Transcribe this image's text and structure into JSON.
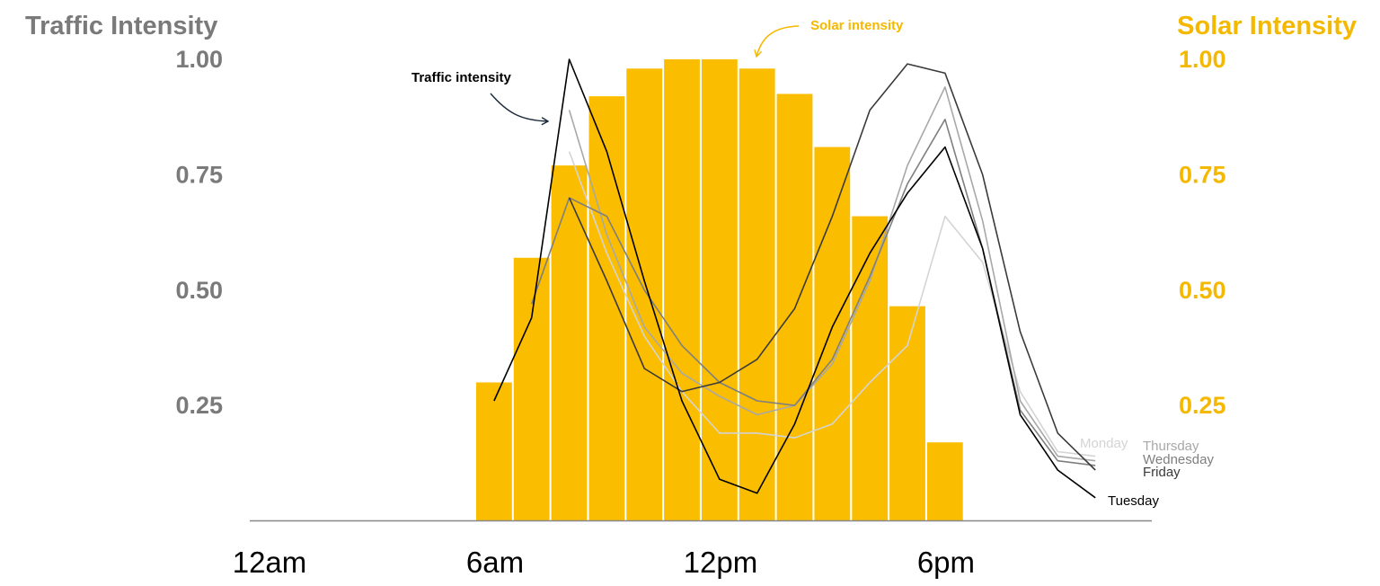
{
  "chart_data": {
    "type": "bar",
    "left_axis": {
      "title": "Traffic Intensity",
      "ticks": [
        "1.00",
        "0.75",
        "0.50",
        "0.25"
      ],
      "tick_values": [
        1.0,
        0.75,
        0.5,
        0.25
      ],
      "ylim": [
        0,
        1.0
      ],
      "color": "#7a7a7a"
    },
    "right_axis": {
      "title": "Solar Intensity",
      "ticks": [
        "1.00",
        "0.75",
        "0.50",
        "0.25"
      ],
      "tick_values": [
        1.0,
        0.75,
        0.5,
        0.25
      ],
      "ylim": [
        0,
        1.0
      ],
      "color": "#f5b800"
    },
    "x_axis": {
      "xlim": [
        0,
        24
      ],
      "ticks": [
        "12am",
        "6am",
        "12pm",
        "6pm"
      ],
      "tick_values": [
        0,
        6,
        12,
        18
      ]
    },
    "solar_bars": {
      "color": "#fbbd00",
      "hours": [
        6,
        7,
        8,
        9,
        10,
        11,
        12,
        13,
        14,
        15,
        16,
        17,
        18
      ],
      "values": [
        0.3,
        0.57,
        0.77,
        0.92,
        0.98,
        1.0,
        1.0,
        0.98,
        0.925,
        0.81,
        0.66,
        0.465,
        0.17
      ]
    },
    "series": [
      {
        "name": "Monday",
        "color": "#d4d4d4",
        "x": [
          8.5,
          9.5,
          10.5,
          11.5,
          12.5,
          13.5,
          14.5,
          15.5,
          16.5,
          17.5,
          18.5,
          19.5,
          20.5,
          21.5,
          22.5
        ],
        "values": [
          0.8,
          0.58,
          0.4,
          0.28,
          0.19,
          0.19,
          0.18,
          0.21,
          0.3,
          0.38,
          0.66,
          0.56,
          0.28,
          0.15,
          0.14
        ]
      },
      {
        "name": "Thursday",
        "color": "#a8a8a8",
        "x": [
          8.5,
          9.5,
          10.5,
          11.5,
          12.5,
          13.5,
          14.5,
          15.5,
          16.5,
          17.5,
          18.5,
          19.5,
          20.5,
          21.5,
          22.5
        ],
        "values": [
          0.89,
          0.62,
          0.42,
          0.32,
          0.27,
          0.23,
          0.25,
          0.34,
          0.52,
          0.77,
          0.94,
          0.65,
          0.26,
          0.14,
          0.13
        ]
      },
      {
        "name": "Wednesday",
        "color": "#7f7f7f",
        "x": [
          7.5,
          8.5,
          9.5,
          10.5,
          11.5,
          12.5,
          13.5,
          14.5,
          15.5,
          16.5,
          17.5,
          18.5,
          19.5,
          20.5,
          21.5,
          22.5
        ],
        "values": [
          0.47,
          0.7,
          0.66,
          0.5,
          0.38,
          0.3,
          0.26,
          0.25,
          0.35,
          0.53,
          0.73,
          0.87,
          0.59,
          0.24,
          0.13,
          0.12
        ]
      },
      {
        "name": "Friday",
        "color": "#3a3a3a",
        "x": [
          8.5,
          9.5,
          10.5,
          11.5,
          12.5,
          13.5,
          14.5,
          15.5,
          16.5,
          17.5,
          18.5,
          19.5,
          20.5,
          21.5,
          22.5
        ],
        "values": [
          0.7,
          0.52,
          0.33,
          0.28,
          0.3,
          0.35,
          0.46,
          0.66,
          0.89,
          0.99,
          0.97,
          0.75,
          0.41,
          0.19,
          0.11
        ]
      },
      {
        "name": "Tuesday",
        "color": "#000000",
        "x": [
          6.5,
          7.5,
          8.5,
          9.5,
          10.5,
          11.5,
          12.5,
          13.5,
          14.5,
          15.5,
          16.5,
          17.5,
          18.5,
          19.5,
          20.5,
          21.5,
          22.5
        ],
        "values": [
          0.26,
          0.44,
          1.0,
          0.8,
          0.52,
          0.26,
          0.09,
          0.06,
          0.21,
          0.42,
          0.58,
          0.71,
          0.81,
          0.59,
          0.23,
          0.11,
          0.05
        ]
      }
    ],
    "annotations": [
      {
        "text": "Traffic intensity",
        "color": "#000000"
      },
      {
        "text": "Solar intensity",
        "color": "#f5b800"
      }
    ]
  }
}
